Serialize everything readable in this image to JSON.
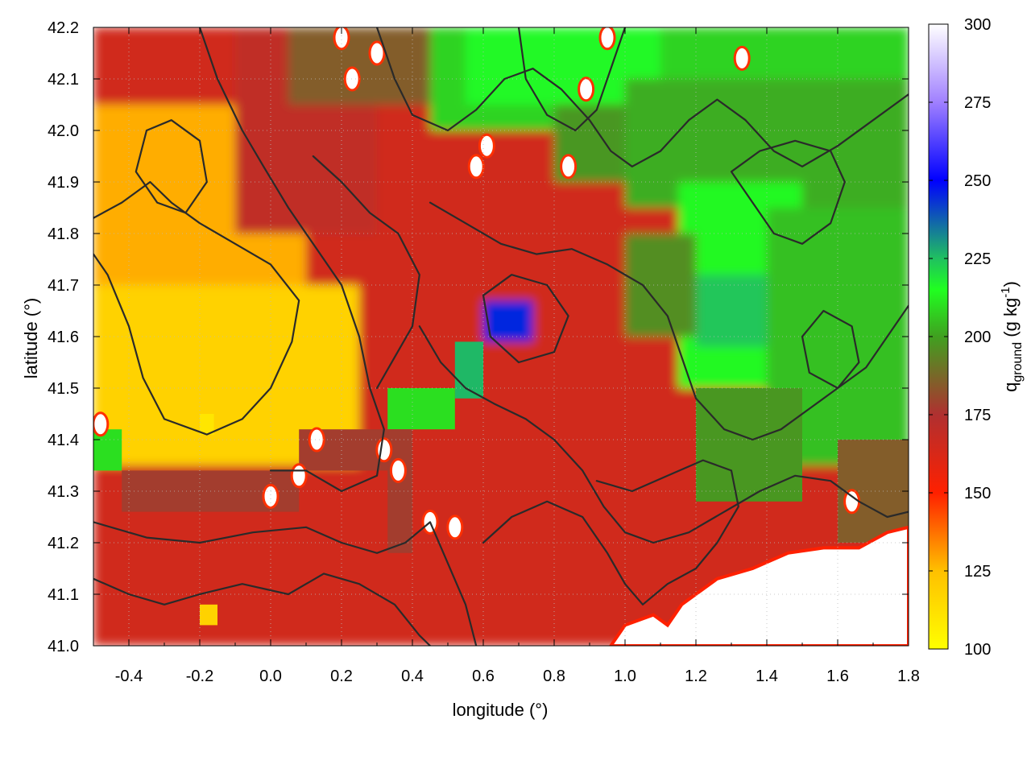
{
  "chart_data": {
    "type": "heatmap",
    "xlabel": "longitude (°)",
    "ylabel": "latitude (°)",
    "colorbar_label_main": "q",
    "colorbar_label_sub": "ground",
    "colorbar_label_unit": " (g kg",
    "colorbar_label_exp": "-1",
    "colorbar_label_close": ")",
    "xlim": [
      -0.5,
      1.8
    ],
    "ylim": [
      41.0,
      42.2
    ],
    "clim": [
      100,
      300
    ],
    "x_ticks": [
      -0.4,
      -0.2,
      0.0,
      0.2,
      0.4,
      0.6,
      0.8,
      1.0,
      1.2,
      1.4,
      1.6,
      1.8
    ],
    "x_tick_labels": [
      "-0.4",
      "-0.2",
      "0.0",
      "0.2",
      "0.4",
      "0.6",
      "0.8",
      "1.0",
      "1.2",
      "1.4",
      "1.6",
      "1.8"
    ],
    "y_ticks": [
      41.0,
      41.1,
      41.2,
      41.3,
      41.4,
      41.5,
      41.6,
      41.7,
      41.8,
      41.9,
      42.0,
      42.1,
      42.2
    ],
    "y_tick_labels": [
      "41.0",
      "41.1",
      "41.2",
      "41.3",
      "41.4",
      "41.5",
      "41.6",
      "41.7",
      "41.8",
      "41.9",
      "42.0",
      "42.1",
      "42.2"
    ],
    "colorbar_ticks": [
      100,
      125,
      150,
      175,
      200,
      225,
      250,
      275,
      300
    ],
    "colorbar_tick_labels": [
      "100",
      "125",
      "150",
      "175",
      "200",
      "225",
      "250",
      "275",
      "300"
    ],
    "colorscale": [
      {
        "v": 100,
        "color": "#ffff00"
      },
      {
        "v": 125,
        "color": "#ffc000"
      },
      {
        "v": 150,
        "color": "#ff2000"
      },
      {
        "v": 175,
        "color": "#b03030"
      },
      {
        "v": 200,
        "color": "#40a020"
      },
      {
        "v": 215,
        "color": "#20ff20"
      },
      {
        "v": 225,
        "color": "#20c060"
      },
      {
        "v": 250,
        "color": "#0000ff"
      },
      {
        "v": 275,
        "color": "#a080ff"
      },
      {
        "v": 300,
        "color": "#ffffff"
      }
    ],
    "grid": true,
    "regions": [
      {
        "x": [
          -0.5,
          1.8
        ],
        "y": [
          41.0,
          42.2
        ],
        "v": 165
      },
      {
        "x": [
          -0.5,
          0.1
        ],
        "y": [
          41.35,
          42.05
        ],
        "v": 128
      },
      {
        "x": [
          -0.5,
          0.25
        ],
        "y": [
          41.35,
          41.7
        ],
        "v": 118
      },
      {
        "x": [
          -0.1,
          0.3
        ],
        "y": [
          41.8,
          42.2
        ],
        "v": 170
      },
      {
        "x": [
          0.05,
          0.65
        ],
        "y": [
          42.05,
          42.2
        ],
        "v": 185
      },
      {
        "x": [
          0.45,
          1.8
        ],
        "y": [
          42.0,
          42.2
        ],
        "v": 208
      },
      {
        "x": [
          0.55,
          1.1
        ],
        "y": [
          42.05,
          42.2
        ],
        "v": 216
      },
      {
        "x": [
          0.8,
          1.2
        ],
        "y": [
          41.9,
          42.05
        ],
        "v": 198
      },
      {
        "x": [
          1.0,
          1.8
        ],
        "y": [
          41.85,
          42.1
        ],
        "v": 202
      },
      {
        "x": [
          1.15,
          1.5
        ],
        "y": [
          41.5,
          41.9
        ],
        "v": 214
      },
      {
        "x": [
          1.2,
          1.45
        ],
        "y": [
          41.58,
          41.72
        ],
        "v": 224
      },
      {
        "x": [
          1.4,
          1.8
        ],
        "y": [
          41.35,
          41.85
        ],
        "v": 205
      },
      {
        "x": [
          1.0,
          1.2
        ],
        "y": [
          41.6,
          41.8
        ],
        "v": 196
      },
      {
        "x": [
          0.6,
          0.74
        ],
        "y": [
          41.59,
          41.67
        ],
        "v": 245
      },
      {
        "x": [
          0.52,
          0.6
        ],
        "y": [
          41.48,
          41.59
        ],
        "v": 226
      },
      {
        "x": [
          0.33,
          0.52
        ],
        "y": [
          41.42,
          41.5
        ],
        "v": 210
      },
      {
        "x": [
          1.2,
          1.5
        ],
        "y": [
          41.28,
          41.5
        ],
        "v": 198
      },
      {
        "x": [
          1.6,
          1.8
        ],
        "y": [
          41.2,
          41.4
        ],
        "v": 185
      },
      {
        "x": [
          -0.42,
          0.08
        ],
        "y": [
          41.26,
          41.34
        ],
        "v": 178
      },
      {
        "x": [
          0.08,
          0.33
        ],
        "y": [
          41.34,
          41.42
        ],
        "v": 178
      },
      {
        "x": [
          0.33,
          0.4
        ],
        "y": [
          41.18,
          41.42
        ],
        "v": 178
      },
      {
        "x": [
          -0.5,
          -0.42
        ],
        "y": [
          41.34,
          41.42
        ],
        "v": 210
      },
      {
        "x": [
          -0.2,
          -0.15
        ],
        "y": [
          41.04,
          41.08
        ],
        "v": 118
      },
      {
        "x": [
          -0.2,
          -0.16
        ],
        "y": [
          41.41,
          41.45
        ],
        "v": 110
      }
    ],
    "coast": [
      [
        0.96,
        41.0
      ],
      [
        1.0,
        41.04
      ],
      [
        1.08,
        41.06
      ],
      [
        1.12,
        41.04
      ],
      [
        1.16,
        41.08
      ],
      [
        1.26,
        41.13
      ],
      [
        1.36,
        41.15
      ],
      [
        1.46,
        41.18
      ],
      [
        1.56,
        41.19
      ],
      [
        1.66,
        41.19
      ],
      [
        1.74,
        41.22
      ],
      [
        1.8,
        41.23
      ],
      [
        1.8,
        41.0
      ]
    ],
    "white_spots": [
      [
        0.2,
        42.18
      ],
      [
        0.23,
        42.1
      ],
      [
        0.3,
        42.15
      ],
      [
        0.58,
        41.93
      ],
      [
        0.61,
        41.97
      ],
      [
        0.84,
        41.93
      ],
      [
        0.89,
        42.08
      ],
      [
        0.95,
        42.18
      ],
      [
        1.33,
        42.14
      ],
      [
        0.13,
        41.4
      ],
      [
        0.08,
        41.33
      ],
      [
        0.0,
        41.29
      ],
      [
        0.32,
        41.38
      ],
      [
        0.36,
        41.34
      ],
      [
        0.45,
        41.24
      ],
      [
        0.52,
        41.23
      ],
      [
        1.64,
        41.28
      ],
      [
        -0.48,
        41.43
      ]
    ],
    "contours": [
      [
        [
          -0.5,
          41.83
        ],
        [
          -0.42,
          41.86
        ],
        [
          -0.34,
          41.9
        ],
        [
          -0.28,
          41.86
        ],
        [
          -0.2,
          41.82
        ],
        [
          -0.1,
          41.78
        ],
        [
          0.0,
          41.74
        ],
        [
          0.08,
          41.67
        ],
        [
          0.06,
          41.59
        ],
        [
          0.0,
          41.5
        ],
        [
          -0.08,
          41.44
        ],
        [
          -0.18,
          41.41
        ],
        [
          -0.3,
          41.44
        ],
        [
          -0.36,
          41.52
        ],
        [
          -0.4,
          41.62
        ],
        [
          -0.46,
          41.72
        ],
        [
          -0.5,
          41.76
        ]
      ],
      [
        [
          -0.2,
          42.2
        ],
        [
          -0.15,
          42.1
        ],
        [
          -0.08,
          42.0
        ],
        [
          -0.02,
          41.93
        ],
        [
          0.05,
          41.85
        ],
        [
          0.12,
          41.78
        ],
        [
          0.2,
          41.7
        ],
        [
          0.25,
          41.6
        ],
        [
          0.28,
          41.5
        ],
        [
          0.32,
          41.42
        ],
        [
          0.3,
          41.33
        ],
        [
          0.2,
          41.3
        ],
        [
          0.1,
          41.34
        ],
        [
          0.0,
          41.34
        ]
      ],
      [
        [
          -0.5,
          41.24
        ],
        [
          -0.35,
          41.21
        ],
        [
          -0.2,
          41.2
        ],
        [
          -0.05,
          41.22
        ],
        [
          0.1,
          41.23
        ],
        [
          0.2,
          41.2
        ],
        [
          0.3,
          41.18
        ],
        [
          0.38,
          41.2
        ],
        [
          0.45,
          41.24
        ],
        [
          0.5,
          41.16
        ],
        [
          0.55,
          41.08
        ],
        [
          0.58,
          41.0
        ]
      ],
      [
        [
          -0.5,
          41.13
        ],
        [
          -0.4,
          41.1
        ],
        [
          -0.3,
          41.08
        ],
        [
          -0.2,
          41.1
        ],
        [
          -0.08,
          41.12
        ],
        [
          0.05,
          41.1
        ],
        [
          0.15,
          41.14
        ],
        [
          0.25,
          41.12
        ],
        [
          0.35,
          41.08
        ],
        [
          0.42,
          41.02
        ],
        [
          0.45,
          41.0
        ]
      ],
      [
        [
          0.3,
          42.2
        ],
        [
          0.35,
          42.1
        ],
        [
          0.4,
          42.03
        ],
        [
          0.5,
          42.0
        ],
        [
          0.58,
          42.04
        ],
        [
          0.66,
          42.1
        ],
        [
          0.74,
          42.12
        ],
        [
          0.82,
          42.08
        ],
        [
          0.9,
          42.02
        ],
        [
          0.96,
          41.96
        ],
        [
          1.02,
          41.93
        ],
        [
          1.1,
          41.96
        ],
        [
          1.18,
          42.02
        ],
        [
          1.26,
          42.06
        ],
        [
          1.34,
          42.02
        ],
        [
          1.42,
          41.96
        ],
        [
          1.5,
          41.93
        ],
        [
          1.6,
          41.97
        ],
        [
          1.7,
          42.02
        ],
        [
          1.8,
          42.07
        ]
      ],
      [
        [
          0.45,
          41.86
        ],
        [
          0.55,
          41.82
        ],
        [
          0.65,
          41.78
        ],
        [
          0.75,
          41.76
        ],
        [
          0.85,
          41.77
        ],
        [
          0.95,
          41.74
        ],
        [
          1.05,
          41.7
        ],
        [
          1.12,
          41.64
        ],
        [
          1.16,
          41.56
        ],
        [
          1.2,
          41.48
        ],
        [
          1.28,
          41.42
        ],
        [
          1.36,
          41.4
        ],
        [
          1.44,
          41.42
        ],
        [
          1.52,
          41.46
        ],
        [
          1.6,
          41.5
        ],
        [
          1.68,
          41.54
        ],
        [
          1.74,
          41.6
        ],
        [
          1.8,
          41.66
        ]
      ],
      [
        [
          0.42,
          41.62
        ],
        [
          0.48,
          41.55
        ],
        [
          0.55,
          41.5
        ],
        [
          0.63,
          41.47
        ],
        [
          0.72,
          41.44
        ],
        [
          0.8,
          41.4
        ],
        [
          0.88,
          41.34
        ],
        [
          0.94,
          41.27
        ],
        [
          1.0,
          41.22
        ],
        [
          1.08,
          41.2
        ],
        [
          1.18,
          41.22
        ],
        [
          1.28,
          41.26
        ],
        [
          1.38,
          41.3
        ],
        [
          1.48,
          41.33
        ],
        [
          1.58,
          41.32
        ],
        [
          1.66,
          41.28
        ],
        [
          1.74,
          41.25
        ],
        [
          1.8,
          41.26
        ]
      ],
      [
        [
          0.6,
          41.2
        ],
        [
          0.68,
          41.25
        ],
        [
          0.78,
          41.28
        ],
        [
          0.88,
          41.25
        ],
        [
          0.95,
          41.18
        ],
        [
          1.0,
          41.12
        ],
        [
          1.05,
          41.08
        ],
        [
          1.12,
          41.12
        ],
        [
          1.2,
          41.15
        ],
        [
          1.26,
          41.2
        ],
        [
          1.32,
          41.27
        ],
        [
          1.3,
          41.34
        ],
        [
          1.22,
          41.36
        ],
        [
          1.12,
          41.33
        ],
        [
          1.02,
          41.3
        ],
        [
          0.92,
          41.32
        ]
      ],
      [
        [
          0.7,
          42.2
        ],
        [
          0.72,
          42.1
        ],
        [
          0.78,
          42.03
        ],
        [
          0.86,
          42.0
        ],
        [
          0.92,
          42.04
        ],
        [
          0.96,
          42.12
        ],
        [
          1.0,
          42.2
        ]
      ],
      [
        [
          -0.35,
          42.0
        ],
        [
          -0.28,
          42.02
        ],
        [
          -0.2,
          41.98
        ],
        [
          -0.18,
          41.9
        ],
        [
          -0.24,
          41.84
        ],
        [
          -0.32,
          41.86
        ],
        [
          -0.38,
          41.92
        ],
        [
          -0.35,
          42.0
        ]
      ],
      [
        [
          1.3,
          41.92
        ],
        [
          1.36,
          41.86
        ],
        [
          1.42,
          41.8
        ],
        [
          1.5,
          41.78
        ],
        [
          1.58,
          41.82
        ],
        [
          1.62,
          41.9
        ],
        [
          1.58,
          41.96
        ],
        [
          1.48,
          41.98
        ],
        [
          1.38,
          41.96
        ],
        [
          1.3,
          41.92
        ]
      ],
      [
        [
          0.12,
          41.95
        ],
        [
          0.2,
          41.9
        ],
        [
          0.28,
          41.84
        ],
        [
          0.36,
          41.8
        ],
        [
          0.42,
          41.72
        ],
        [
          0.4,
          41.62
        ],
        [
          0.35,
          41.56
        ],
        [
          0.3,
          41.5
        ]
      ],
      [
        [
          0.6,
          41.68
        ],
        [
          0.68,
          41.72
        ],
        [
          0.78,
          41.7
        ],
        [
          0.84,
          41.64
        ],
        [
          0.8,
          41.57
        ],
        [
          0.7,
          41.55
        ],
        [
          0.62,
          41.6
        ],
        [
          0.6,
          41.68
        ]
      ],
      [
        [
          1.5,
          41.6
        ],
        [
          1.56,
          41.65
        ],
        [
          1.64,
          41.62
        ],
        [
          1.66,
          41.55
        ],
        [
          1.6,
          41.5
        ],
        [
          1.52,
          41.53
        ],
        [
          1.5,
          41.6
        ]
      ]
    ]
  }
}
